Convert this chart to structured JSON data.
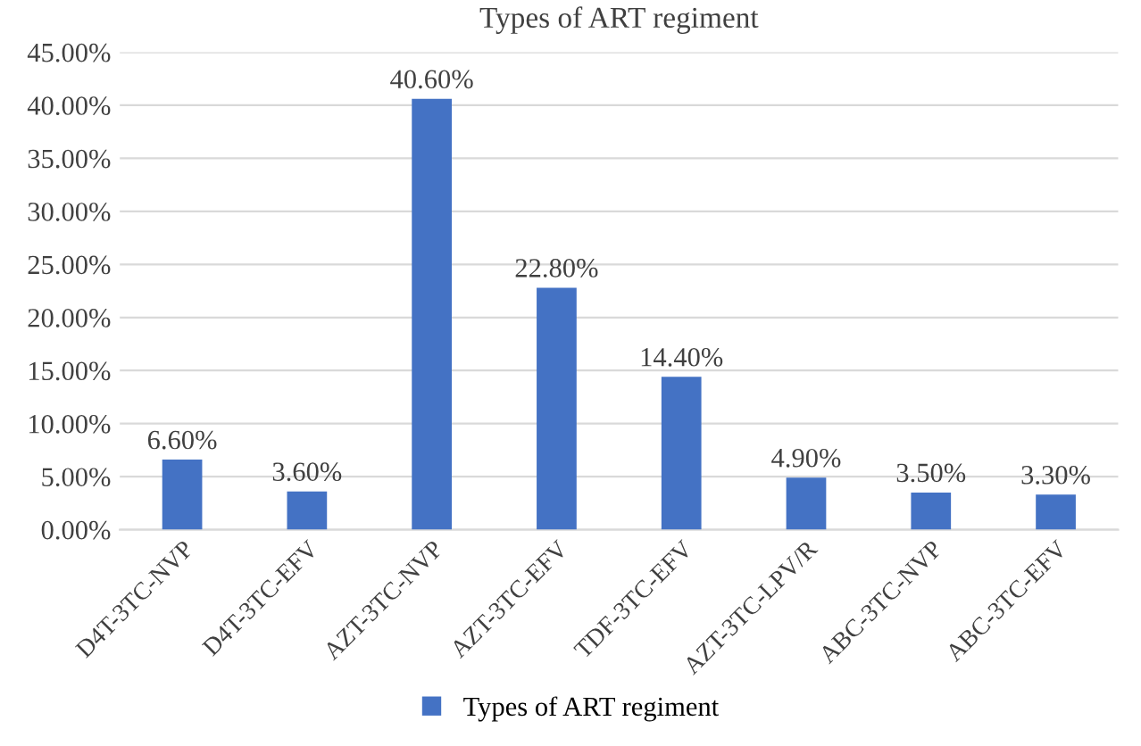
{
  "chart_data": {
    "type": "bar",
    "title": "Types of ART regiment",
    "categories": [
      "D4T-3TC-NVP",
      "D4T-3TC-EFV",
      "AZT-3TC-NVP",
      "AZT-3TC-EFV",
      "TDF-3TC-EFV",
      "AZT-3TC-LPV/R",
      "ABC-3TC-NVP",
      "ABC-3TC-EFV"
    ],
    "series": [
      {
        "name": "Types of ART regiment",
        "color": "#4472c4",
        "values": [
          6.6,
          3.6,
          40.6,
          22.8,
          14.4,
          4.9,
          3.5,
          3.3
        ],
        "value_labels": [
          "6.60%",
          "3.60%",
          "40.60%",
          "22.80%",
          "14.40%",
          "4.90%",
          "3.50%",
          "3.30%"
        ]
      }
    ],
    "ylim": [
      0,
      45
    ],
    "yticks": [
      {
        "value": 0,
        "label": "0.00%"
      },
      {
        "value": 5,
        "label": "5.00%"
      },
      {
        "value": 10,
        "label": "10.00%"
      },
      {
        "value": 15,
        "label": "15.00%"
      },
      {
        "value": 20,
        "label": "20.00%"
      },
      {
        "value": 25,
        "label": "25.00%"
      },
      {
        "value": 30,
        "label": "30.00%"
      },
      {
        "value": 35,
        "label": "35.00%"
      },
      {
        "value": 40,
        "label": "40.00%"
      },
      {
        "value": 45,
        "label": "45.00%"
      }
    ],
    "grid": "y",
    "legend": "bottom"
  }
}
